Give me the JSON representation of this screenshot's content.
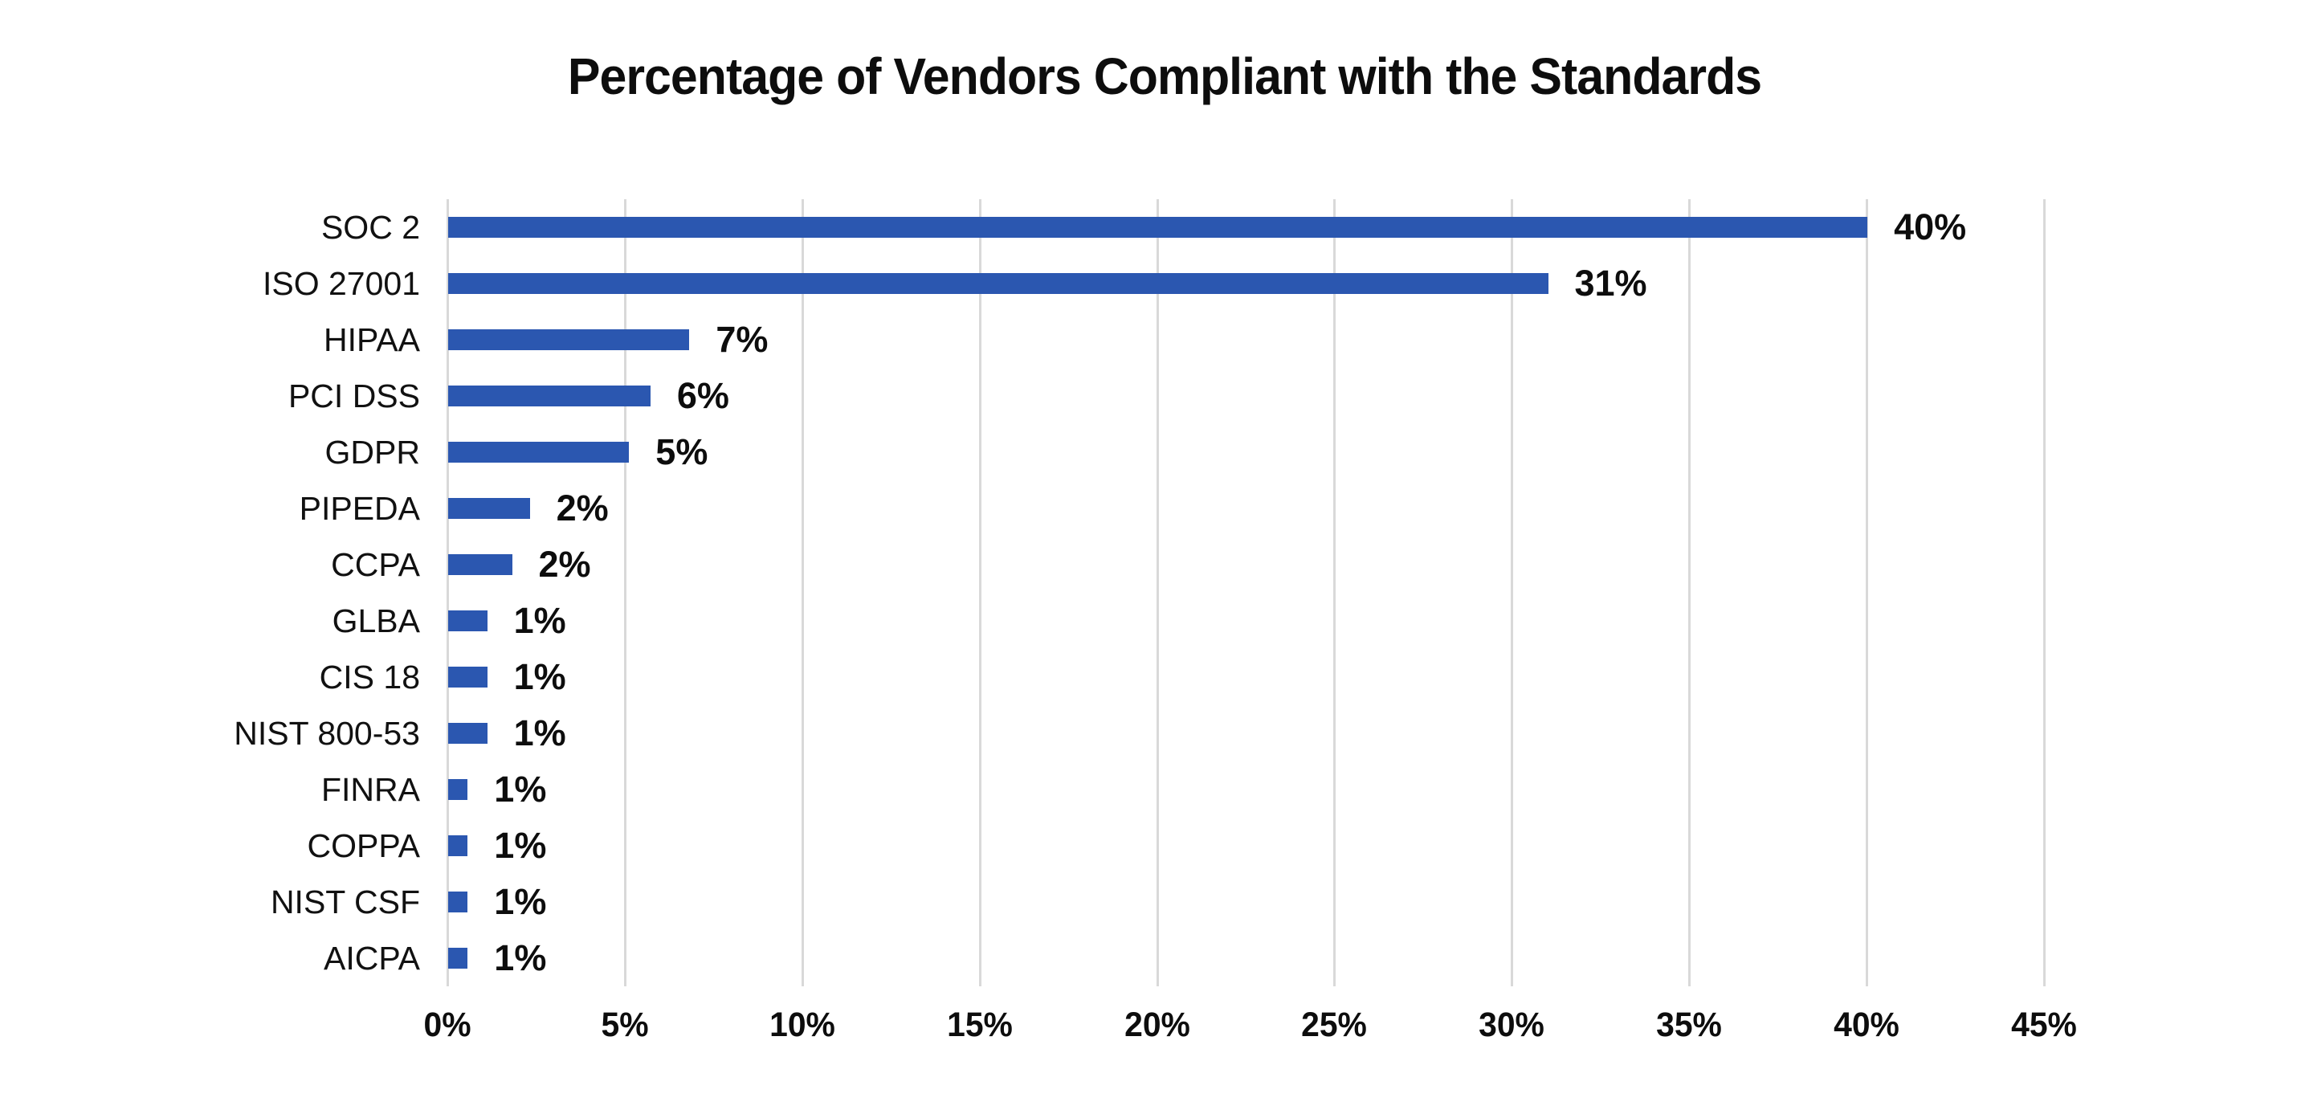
{
  "chart_data": {
    "type": "bar",
    "orientation": "horizontal",
    "title": "Percentage of Vendors Compliant with the Standards",
    "categories": [
      "SOC 2",
      "ISO 27001",
      "HIPAA",
      "PCI DSS",
      "GDPR",
      "PIPEDA",
      "CCPA",
      "GLBA",
      "CIS 18",
      "NIST 800-53",
      "FINRA",
      "COPPA",
      "NIST CSF",
      "AICPA"
    ],
    "values": [
      40,
      31,
      7,
      6,
      5,
      2,
      2,
      1,
      1,
      1,
      1,
      1,
      1,
      1
    ],
    "value_labels": [
      "40%",
      "31%",
      "7%",
      "6%",
      "5%",
      "2%",
      "2%",
      "1%",
      "1%",
      "1%",
      "1%",
      "1%",
      "1%",
      "1%"
    ],
    "bar_visual_percent": [
      40,
      31,
      6.8,
      5.7,
      5.1,
      2.3,
      1.8,
      1.1,
      1.1,
      1.1,
      0.55,
      0.55,
      0.55,
      0.55
    ],
    "x_ticks": [
      "0%",
      "5%",
      "10%",
      "15%",
      "20%",
      "25%",
      "30%",
      "35%",
      "40%",
      "45%"
    ],
    "x_tick_values": [
      0,
      5,
      10,
      15,
      20,
      25,
      30,
      35,
      40,
      45
    ],
    "xlim": [
      0,
      45
    ],
    "xlabel": "",
    "ylabel": "",
    "grid": true,
    "legend": false,
    "bar_color": "#2b57b0",
    "gridline_color": "#d9d9d9",
    "text_color": "#0d0d0d",
    "background_color": "#ffffff"
  }
}
